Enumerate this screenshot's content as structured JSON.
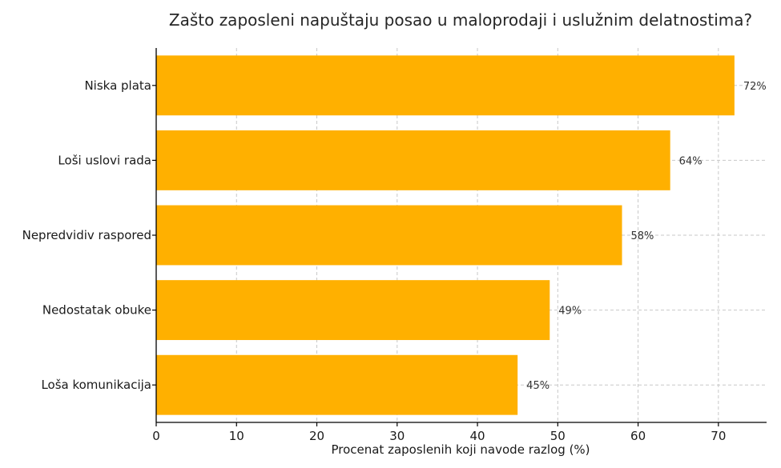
{
  "chart_data": {
    "type": "bar",
    "orientation": "horizontal",
    "title": "Zašto zaposleni napuštaju posao u maloprodaji i uslužnim delatnostima?",
    "xlabel": "Procenat zaposlenih koji navode razlog (%)",
    "ylabel": "",
    "categories": [
      "Niska plata",
      "Loši uslovi rada",
      "Nepredvidiv raspored",
      "Nedostatak obuke",
      "Loša komunikacija"
    ],
    "values": [
      72,
      64,
      58,
      49,
      45
    ],
    "data_labels": [
      "72%",
      "64%",
      "58%",
      "49%",
      "45%"
    ],
    "xlim": [
      0,
      76
    ],
    "xticks": [
      0,
      10,
      20,
      30,
      40,
      50,
      60,
      70
    ],
    "grid": true,
    "bar_color": "#FFB000"
  }
}
